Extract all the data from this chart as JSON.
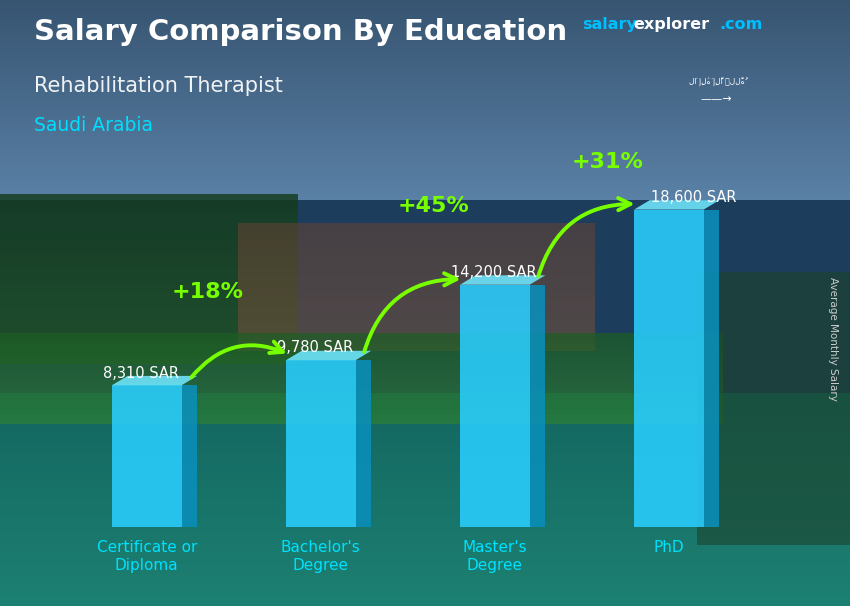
{
  "title": "Salary Comparison By Education",
  "subtitle": "Rehabilitation Therapist",
  "country": "Saudi Arabia",
  "ylabel": "Average Monthly Salary",
  "categories": [
    "Certificate or\nDiploma",
    "Bachelor's\nDegree",
    "Master's\nDegree",
    "PhD"
  ],
  "values": [
    8310,
    9780,
    14200,
    18600
  ],
  "bar_color_face": "#29CEFF",
  "bar_color_side": "#0A8FBB",
  "bar_color_top": "#70E8FF",
  "salary_labels": [
    "8,310 SAR",
    "9,780 SAR",
    "14,200 SAR",
    "18,600 SAR"
  ],
  "pct_labels": [
    "+18%",
    "+45%",
    "+31%"
  ],
  "title_color": "#FFFFFF",
  "subtitle_color": "#FFFFFF",
  "country_color": "#00DFFF",
  "salary_label_color": "#FFFFFF",
  "pct_label_color": "#77FF00",
  "ylabel_color": "#CCCCCC",
  "website_salary_color": "#00BFFF",
  "website_explorer_color": "#FFFFFF",
  "website_com_color": "#00BFFF",
  "flag_bg": "#3aaa35",
  "ylim_max": 22000,
  "fig_width": 8.5,
  "fig_height": 6.06,
  "dpi": 100
}
